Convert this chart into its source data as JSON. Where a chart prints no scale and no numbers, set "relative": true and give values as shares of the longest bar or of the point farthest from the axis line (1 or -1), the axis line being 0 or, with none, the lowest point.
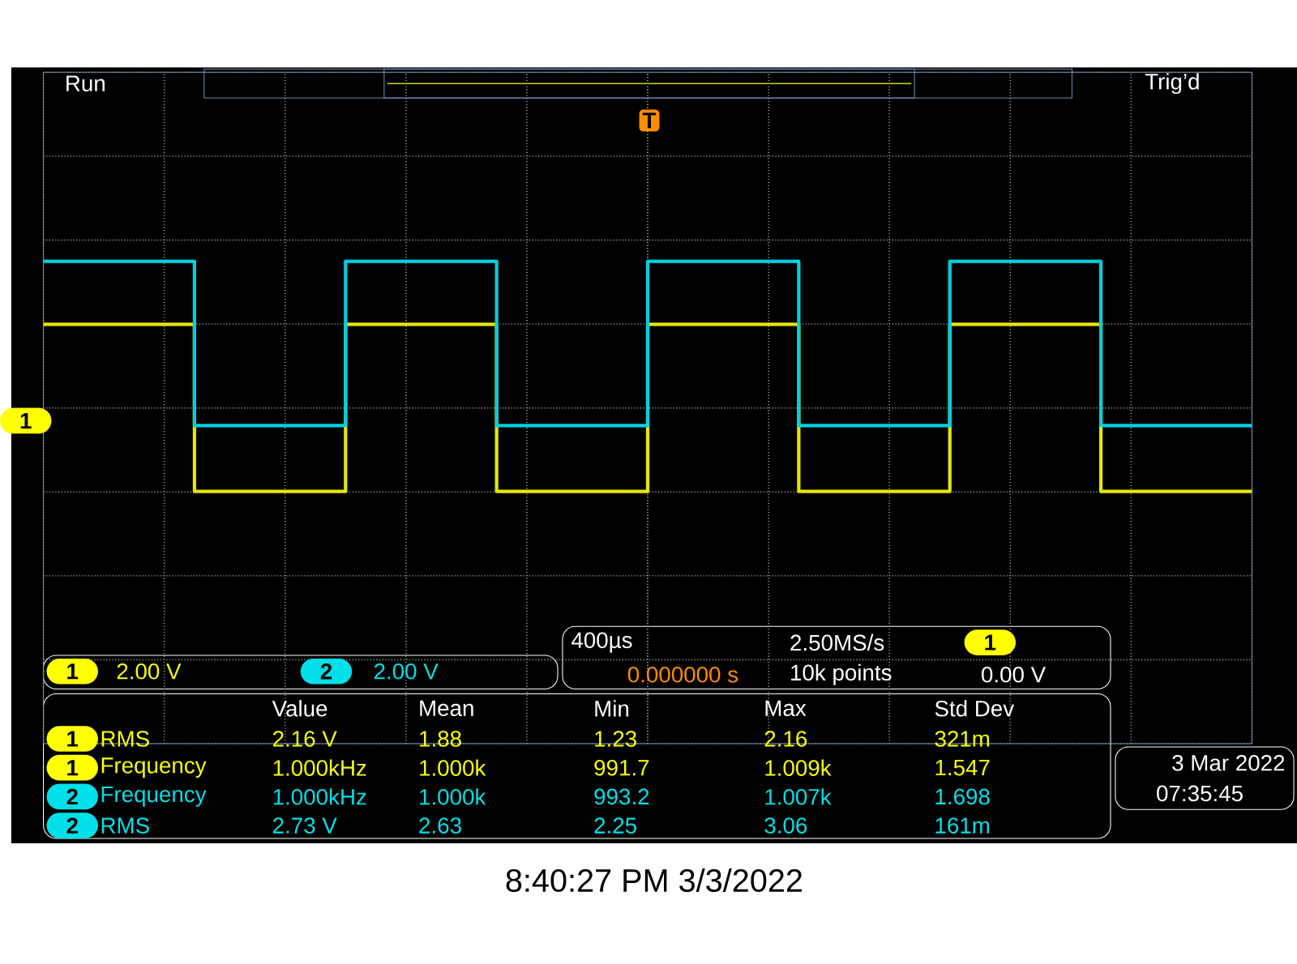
{
  "chart_data": {
    "type": "step",
    "relative": true,
    "grid": true,
    "categories": [
      null,
      null,
      null,
      null,
      null,
      null,
      null,
      null,
      null
    ],
    "series": [
      {
        "color": "#e6e600",
        "values": [
          0.57,
          -0.57,
          0.57,
          -0.57,
          0.57,
          -0.57,
          0.57,
          -0.57,
          -0.57
        ]
      },
      {
        "color": "#00d0e0",
        "values": [
          1,
          -0.12,
          1,
          -0.12,
          1,
          -0.12,
          1,
          -0.12,
          -0.12
        ]
      }
    ],
    "annotations": [
      "Run",
      "Trig’d",
      "1",
      "2.00 V",
      "2",
      "2.00 V",
      "400µs",
      "2.50MS/s",
      "1",
      "0.000000 s",
      "10k points",
      "0.00 V",
      "Value",
      "Mean",
      "Min",
      "Max",
      "Std Dev",
      "1",
      "RMS",
      "2.16 V",
      "1.88",
      "1.23",
      "2.16",
      "321m",
      "1",
      "Frequency",
      "1.000kHz",
      "1.000k",
      "991.7",
      "1.009k",
      "1.547",
      "2",
      "Frequency",
      "1.000kHz",
      "1.000k",
      "993.2",
      "1.007k",
      "1.698",
      "2",
      "RMS",
      "2.73 V",
      "2.63",
      "2.25",
      "3.06",
      "161m",
      "3 Mar 2022",
      "07:35:45",
      "8:40:27 PM 3/3/2022",
      "1",
      "T"
    ]
  }
}
